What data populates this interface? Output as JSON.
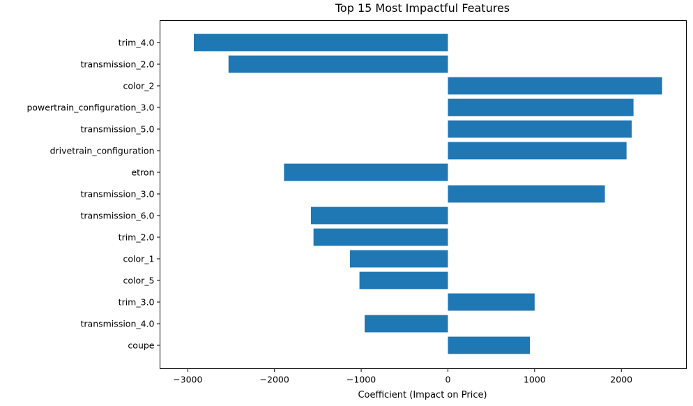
{
  "chart_data": {
    "type": "bar",
    "orientation": "horizontal",
    "title": "Top 15 Most Impactful Features",
    "xlabel": "Coefficient (Impact on Price)",
    "ylabel": "",
    "bar_color": "#1f77b4",
    "xlim": [
      -3320,
      2750
    ],
    "xticks": [
      -3000,
      -2000,
      -1000,
      0,
      1000,
      2000
    ],
    "xtick_labels": [
      "−3000",
      "−2000",
      "−1000",
      "0",
      "1000",
      "2000"
    ],
    "grid": false,
    "categories": [
      "trim_4.0",
      "transmission_2.0",
      "color_2",
      "powertrain_configuration_3.0",
      "transmission_5.0",
      "drivetrain_configuration",
      "etron",
      "transmission_3.0",
      "transmission_6.0",
      "trim_2.0",
      "color_1",
      "color_5",
      "trim_3.0",
      "transmission_4.0",
      "coupe"
    ],
    "values": [
      -2930,
      -2530,
      2470,
      2140,
      2120,
      2060,
      -1890,
      1810,
      -1580,
      -1550,
      -1130,
      -1020,
      1000,
      -960,
      945
    ]
  }
}
